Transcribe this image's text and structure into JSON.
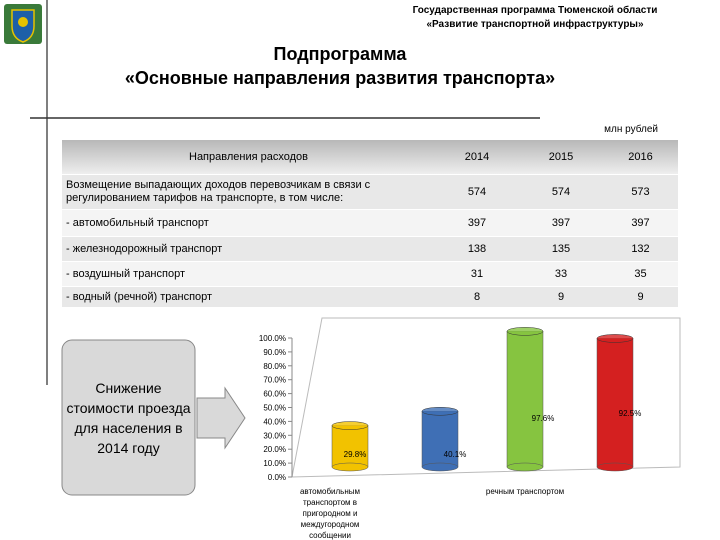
{
  "header": {
    "program": "Государственная программа Тюменской области",
    "program_name": "«Развитие транспортной инфраструктуры»",
    "title_line1": "Подпрограмма",
    "title_line2": "«Основные направления развития транспорта»",
    "unit": "млн рублей"
  },
  "table": {
    "header": [
      "Направления расходов",
      "2014",
      "2015",
      "2016"
    ],
    "rows": [
      [
        "Возмещение выпадающих доходов перевозчикам в связи с регулированием тарифов на транспорте, в том числе:",
        574,
        574,
        573
      ],
      [
        "- автомобильный транспорт",
        397,
        397,
        397
      ],
      [
        "- железнодорожный транспорт",
        138,
        135,
        132
      ],
      [
        "- воздушный транспорт",
        31,
        33,
        35
      ],
      [
        "- водный (речной) транспорт",
        8,
        9,
        9
      ]
    ]
  },
  "callout": "Снижение стоимости проезда для населения в 2014 году",
  "chart_data": {
    "type": "bar",
    "categories": [
      "автомобильным транспортом в пригородном и междугородном сообщении",
      null,
      "речным транспортом",
      null
    ],
    "values": [
      29.8,
      40.1,
      97.6,
      92.5
    ],
    "value_labels": [
      "29.8%",
      "40.1%",
      "97.6%",
      "92.5%"
    ],
    "colors": [
      "#f2c200",
      "#3f6fb5",
      "#86c440",
      "#d42020"
    ],
    "ylim": [
      0,
      100
    ],
    "yticks": [
      {
        "value": 0,
        "label": "0.0%"
      },
      {
        "value": 10,
        "label": "10.0%"
      },
      {
        "value": 20,
        "label": "20.0%"
      },
      {
        "value": 30,
        "label": "30.0%"
      },
      {
        "value": 40,
        "label": "40.0%"
      },
      {
        "value": 50,
        "label": "50.0%"
      },
      {
        "value": 60,
        "label": "60.0%"
      },
      {
        "value": 70,
        "label": "70.0%"
      },
      {
        "value": 80,
        "label": "80.0%"
      },
      {
        "value": 90,
        "label": "90.0%"
      },
      {
        "value": 100,
        "label": "100.0%"
      }
    ]
  }
}
